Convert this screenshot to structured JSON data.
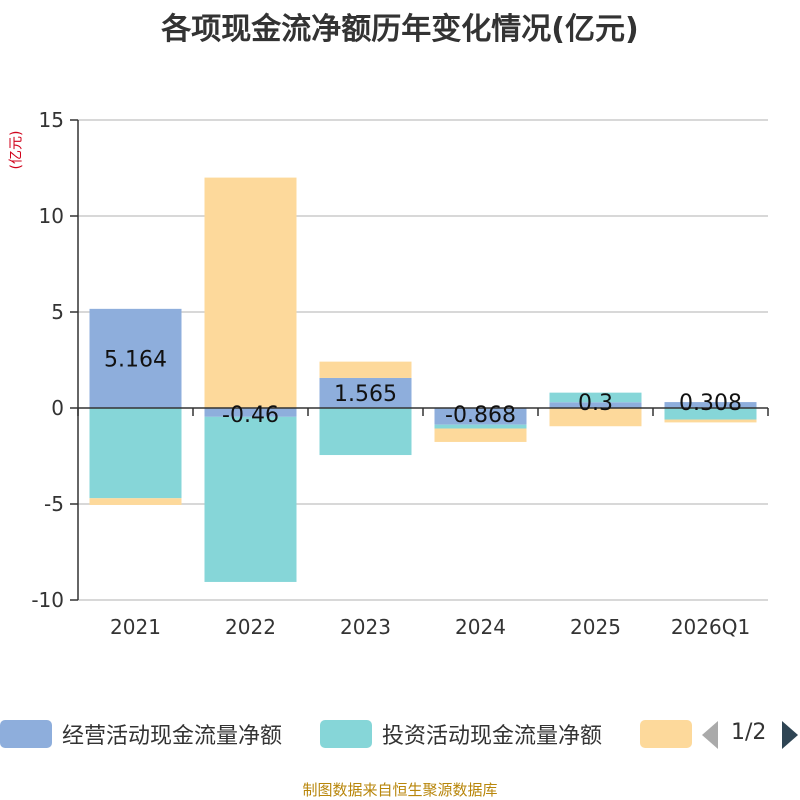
{
  "chart_data": {
    "type": "bar",
    "stacked": true,
    "title": "各项现金流净额历年变化情况(亿元)",
    "ylabel": "(亿元)",
    "xlabel": "",
    "ylim": [
      -10,
      15
    ],
    "yticks": [
      15,
      10,
      5,
      0,
      -5,
      -10
    ],
    "categories": [
      "2021",
      "2022",
      "2023",
      "2024",
      "2025",
      "2026Q1"
    ],
    "series": [
      {
        "name": "经营活动现金流量净额",
        "color": "#8eaedc",
        "values": [
          5.164,
          -0.46,
          1.565,
          -0.868,
          0.3,
          0.308
        ],
        "labels": [
          "5.164",
          "-0.46",
          "1.565",
          "-0.868",
          "0.3",
          "0.308"
        ]
      },
      {
        "name": "投资活动现金流量净额",
        "color": "#86d6d8",
        "values": [
          -4.7,
          -8.6,
          -2.45,
          -0.2,
          0.5,
          -0.6
        ],
        "labels": []
      },
      {
        "name": "",
        "color": "#fdd99b",
        "values": [
          -0.35,
          12.0,
          0.85,
          -0.7,
          -0.95,
          -0.15
        ],
        "labels": []
      }
    ],
    "legend_position": "bottom"
  },
  "legend": {
    "items": [
      "经营活动现金流量净额",
      "投资活动现金流量净额",
      ""
    ],
    "page_text": "1/2"
  },
  "source": "制图数据来自恒生聚源数据库"
}
